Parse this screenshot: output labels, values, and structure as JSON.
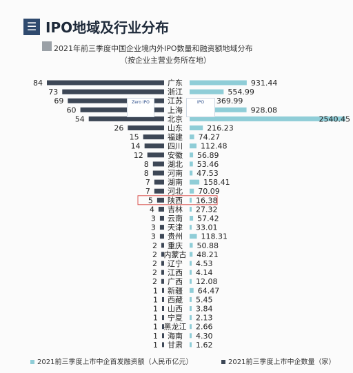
{
  "header": {
    "menu_icon": "menu-icon",
    "title": "IPO地域及行业分布"
  },
  "subtitle": {
    "line1": "2021年前三季度中国企业境内外IPO数量和融资额地域分布",
    "line2": "（按企业主营业务所在地）"
  },
  "logos": {
    "left": "Zero IPO",
    "right": "IPO"
  },
  "colors": {
    "count_bar": "#3d4756",
    "amount_bar": "#8fcdd7",
    "highlight": "#d9534f"
  },
  "chart_data": {
    "type": "bar",
    "orientation": "horizontal-butterfly",
    "categories": [
      "广东",
      "浙江",
      "江苏",
      "上海",
      "北京",
      "山东",
      "福建",
      "四川",
      "安徽",
      "湖北",
      "河南",
      "湖南",
      "河北",
      "陕西",
      "吉林",
      "云南",
      "天津",
      "贵州",
      "重庆",
      "内蒙古",
      "辽宁",
      "江西",
      "广西",
      "新疆",
      "西藏",
      "山西",
      "宁夏",
      "黑龙江",
      "海南",
      "甘肃"
    ],
    "series": [
      {
        "name": "2021前三季度上市中企数量（家）",
        "side": "left",
        "values": [
          84,
          73,
          69,
          60,
          54,
          26,
          15,
          14,
          12,
          8,
          8,
          7,
          7,
          5,
          4,
          3,
          3,
          3,
          2,
          2,
          2,
          2,
          2,
          1,
          1,
          1,
          1,
          1,
          1,
          1
        ]
      },
      {
        "name": "2021前三季度上市中企首发融资额（人民币亿元）",
        "side": "right",
        "values": [
          931.44,
          554.99,
          369.99,
          928.08,
          2540.45,
          216.23,
          74.27,
          112.48,
          56.89,
          53.46,
          47.53,
          158.41,
          70.09,
          16.38,
          27.32,
          57.42,
          33.01,
          118.31,
          50.88,
          48.21,
          4.53,
          4.14,
          12.08,
          64.47,
          5.45,
          3.84,
          2.13,
          2.66,
          4.3,
          1.62
        ]
      }
    ],
    "value_labels_left": [
      "84",
      "73",
      "69",
      "60",
      "54",
      "26",
      "15",
      "14",
      "12",
      "8",
      "8",
      "7",
      "7",
      "5",
      "4",
      "3",
      "3",
      "3",
      "2",
      "2",
      "2",
      "2",
      "2",
      "1",
      "1",
      "1",
      "1",
      "1",
      "1",
      "1"
    ],
    "value_labels_right": [
      "931.44",
      "554.99",
      "369.99",
      "928.08",
      "2540.45",
      "216.23",
      "74.27",
      "112.48",
      "56.89",
      "53.46",
      "47.53",
      "158.41",
      "70.09",
      "16.38",
      "27.32",
      "57.42",
      "33.01",
      "118.31",
      "50.88",
      "48.21",
      "4.53",
      "4.14",
      "12.08",
      "64.47",
      "5.45",
      "3.84",
      "2.13",
      "2.66",
      "4.30",
      "1.62"
    ],
    "highlighted_category": "陕西",
    "legend_position": "bottom",
    "grid": false
  }
}
